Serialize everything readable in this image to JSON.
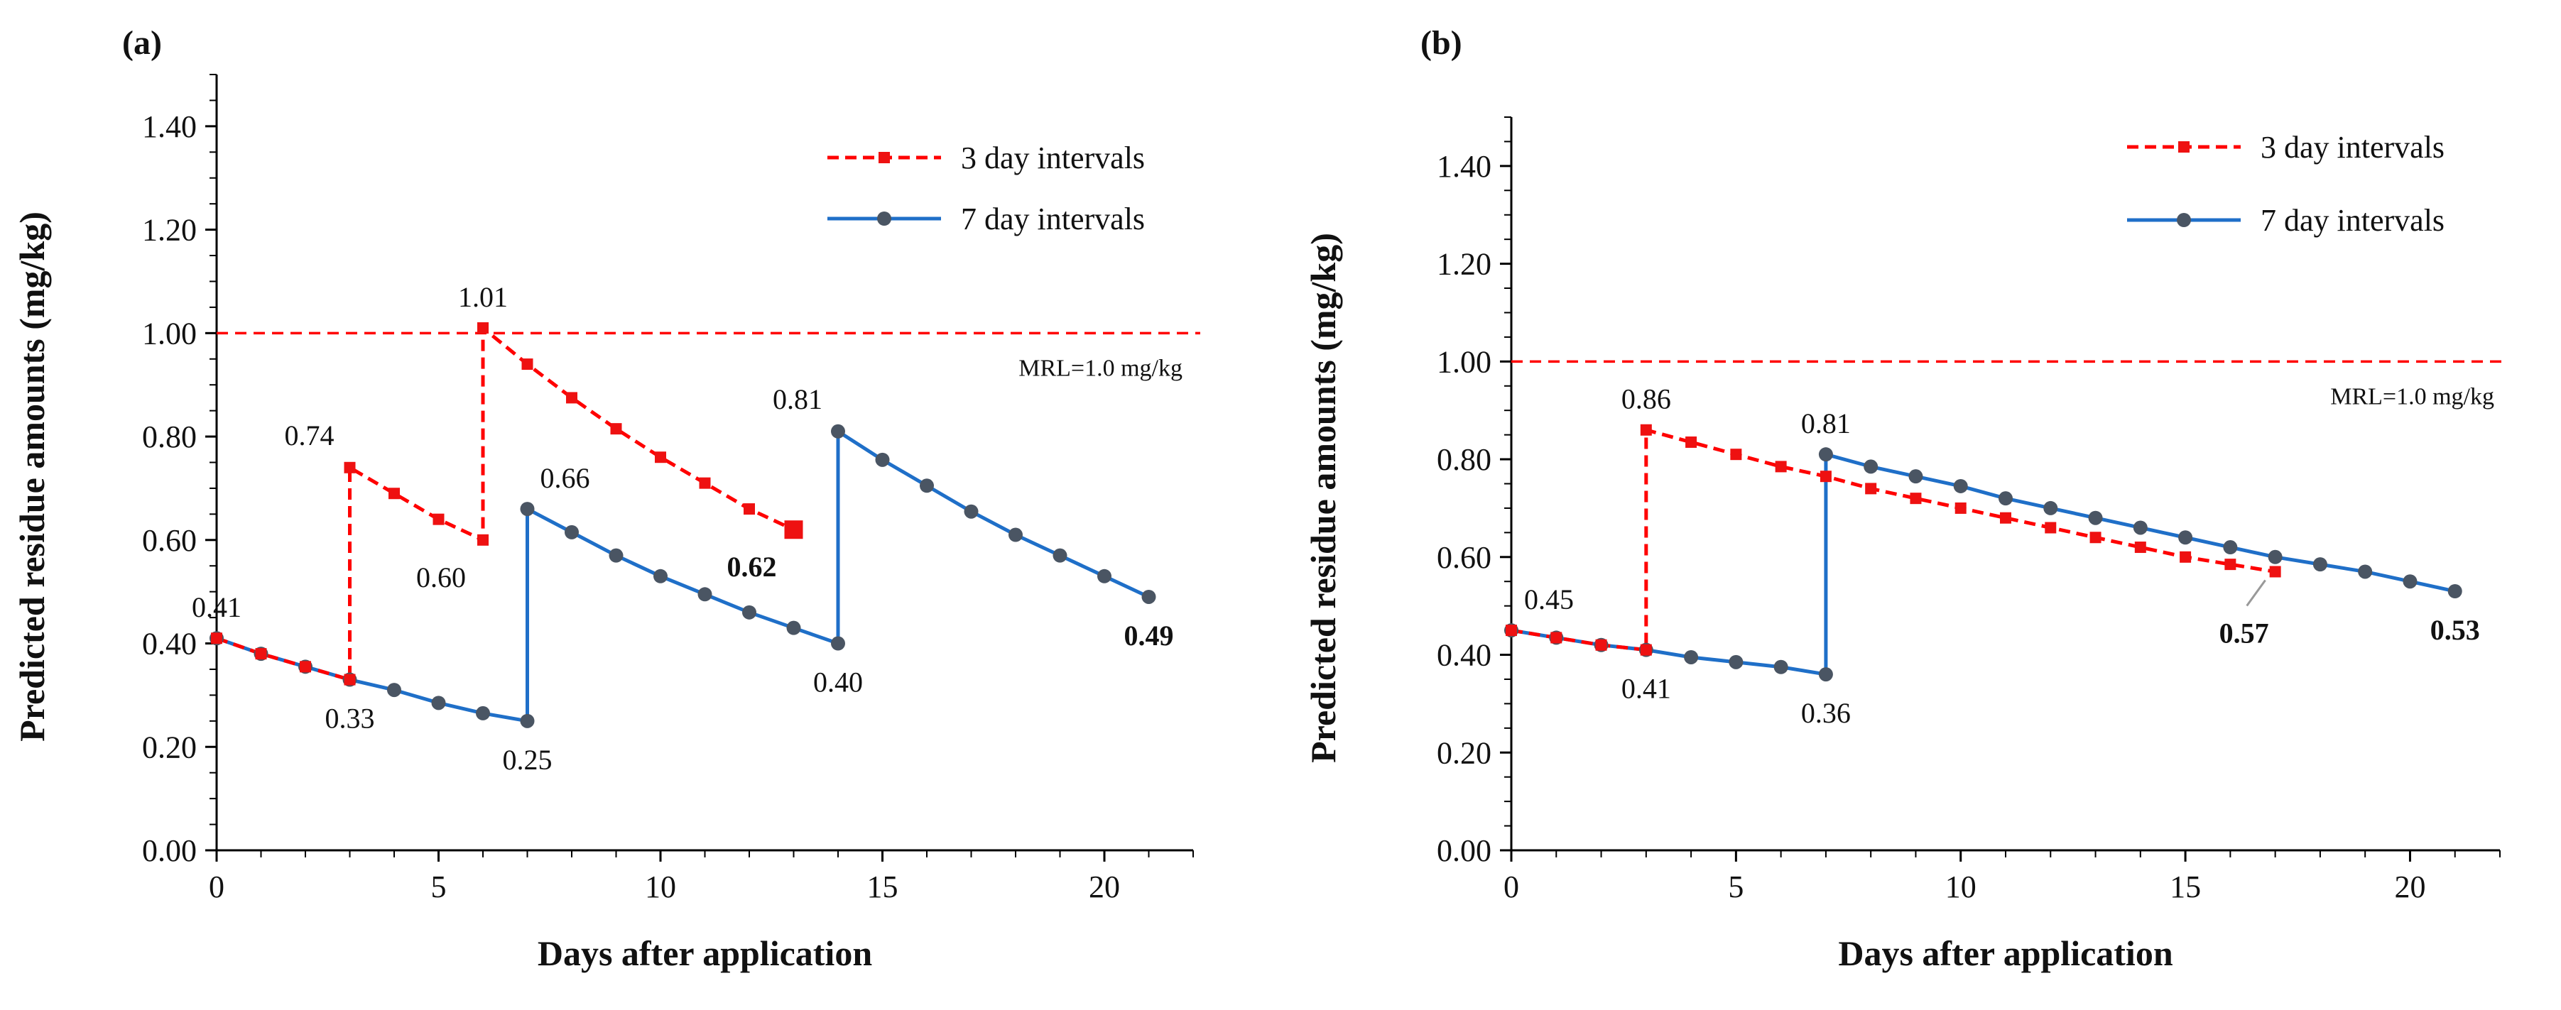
{
  "chart_data": [
    {
      "panel": "(a)",
      "type": "line",
      "xlabel": "Days after application",
      "ylabel": "Predicted residue amounts (mg/kg)",
      "xlim": [
        0,
        22
      ],
      "ylim": [
        0,
        1.5
      ],
      "xticks": [
        "0",
        "5",
        "10",
        "15",
        "20"
      ],
      "xtick_values": [
        0,
        5,
        10,
        15,
        20
      ],
      "yticks": [
        "0.00",
        "0.20",
        "0.40",
        "0.60",
        "0.80",
        "1.00",
        "1.20",
        "1.40"
      ],
      "ytick_values": [
        0,
        0.2,
        0.4,
        0.6,
        0.8,
        1.0,
        1.2,
        1.4
      ],
      "mrl": {
        "value": 1.0,
        "label": "MRL=1.0 mg/kg"
      },
      "legend": {
        "position": "top-right"
      },
      "series": [
        {
          "name": "3 day intervals",
          "style": "dashed",
          "marker": "square",
          "color": "#ff0000",
          "x": [
            0,
            1,
            2,
            3,
            3,
            4,
            5,
            6,
            6,
            7,
            8,
            9,
            10,
            11,
            12,
            13
          ],
          "y": [
            0.41,
            0.38,
            0.355,
            0.33,
            0.74,
            0.69,
            0.64,
            0.6,
            1.01,
            0.94,
            0.875,
            0.815,
            0.76,
            0.71,
            0.66,
            0.62
          ]
        },
        {
          "name": "7 day intervals",
          "style": "solid",
          "marker": "circle",
          "color": "#1f6fc8",
          "x": [
            0,
            1,
            2,
            3,
            4,
            5,
            6,
            7,
            7,
            8,
            9,
            10,
            11,
            12,
            13,
            14,
            14,
            15,
            16,
            17,
            18,
            19,
            20,
            21
          ],
          "y": [
            0.41,
            0.38,
            0.355,
            0.33,
            0.31,
            0.285,
            0.265,
            0.25,
            0.66,
            0.615,
            0.57,
            0.53,
            0.495,
            0.46,
            0.43,
            0.4,
            0.81,
            0.755,
            0.705,
            0.655,
            0.61,
            0.57,
            0.53,
            0.49
          ]
        }
      ],
      "annotations": [
        {
          "text": "0.41",
          "x": 0,
          "y": 0.41,
          "pos": "above",
          "bold": false
        },
        {
          "text": "0.33",
          "x": 3,
          "y": 0.33,
          "pos": "below",
          "bold": false
        },
        {
          "text": "0.74",
          "x": 3,
          "y": 0.74,
          "pos": "left-above",
          "bold": false
        },
        {
          "text": "0.60",
          "x": 6,
          "y": 0.6,
          "pos": "left-below",
          "bold": false
        },
        {
          "text": "1.01",
          "x": 6,
          "y": 1.01,
          "pos": "above",
          "bold": false
        },
        {
          "text": "0.25",
          "x": 7,
          "y": 0.25,
          "pos": "below",
          "bold": false
        },
        {
          "text": "0.66",
          "x": 7,
          "y": 0.66,
          "pos": "right-above",
          "bold": false
        },
        {
          "text": "0.62",
          "x": 13,
          "y": 0.62,
          "pos": "left-below",
          "bold": true
        },
        {
          "text": "0.40",
          "x": 14,
          "y": 0.4,
          "pos": "below",
          "bold": false
        },
        {
          "text": "0.81",
          "x": 14,
          "y": 0.81,
          "pos": "left-above",
          "bold": false
        },
        {
          "text": "0.49",
          "x": 21,
          "y": 0.49,
          "pos": "below",
          "bold": true
        }
      ]
    },
    {
      "panel": "(b)",
      "type": "line",
      "xlabel": "Days after application",
      "ylabel": "Predicted residue amounts (mg/kg)",
      "xlim": [
        0,
        22
      ],
      "ylim": [
        0,
        1.5
      ],
      "xticks": [
        "0",
        "5",
        "10",
        "15",
        "20"
      ],
      "xtick_values": [
        0,
        5,
        10,
        15,
        20
      ],
      "yticks": [
        "0.00",
        "0.20",
        "0.40",
        "0.60",
        "0.80",
        "1.00",
        "1.20",
        "1.40"
      ],
      "ytick_values": [
        0,
        0.2,
        0.4,
        0.6,
        0.8,
        1.0,
        1.2,
        1.4
      ],
      "mrl": {
        "value": 1.0,
        "label": "MRL=1.0 mg/kg"
      },
      "legend": {
        "position": "top-right"
      },
      "series": [
        {
          "name": "3 day intervals",
          "style": "dashed",
          "marker": "square",
          "color": "#ff0000",
          "x": [
            0,
            1,
            2,
            3,
            3,
            4,
            5,
            6,
            7,
            8,
            9,
            10,
            11,
            12,
            13,
            14,
            15,
            16,
            17
          ],
          "y": [
            0.45,
            0.435,
            0.42,
            0.41,
            0.86,
            0.835,
            0.81,
            0.785,
            0.765,
            0.74,
            0.72,
            0.7,
            0.68,
            0.66,
            0.64,
            0.62,
            0.6,
            0.585,
            0.57
          ]
        },
        {
          "name": "7 day intervals",
          "style": "solid",
          "marker": "circle",
          "color": "#1f6fc8",
          "x": [
            0,
            1,
            2,
            3,
            4,
            5,
            6,
            7,
            7,
            8,
            9,
            10,
            11,
            12,
            13,
            14,
            15,
            16,
            17,
            18,
            19,
            20,
            21
          ],
          "y": [
            0.45,
            0.435,
            0.42,
            0.41,
            0.395,
            0.385,
            0.375,
            0.36,
            0.81,
            0.785,
            0.765,
            0.745,
            0.72,
            0.7,
            0.68,
            0.66,
            0.64,
            0.62,
            0.6,
            0.585,
            0.57,
            0.55,
            0.53
          ]
        }
      ],
      "annotations": [
        {
          "text": "0.45",
          "x": 0,
          "y": 0.45,
          "pos": "right-above",
          "bold": false
        },
        {
          "text": "0.41",
          "x": 3,
          "y": 0.41,
          "pos": "below",
          "bold": false
        },
        {
          "text": "0.86",
          "x": 3,
          "y": 0.86,
          "pos": "above",
          "bold": false
        },
        {
          "text": "0.36",
          "x": 7,
          "y": 0.36,
          "pos": "below",
          "bold": false
        },
        {
          "text": "0.81",
          "x": 7,
          "y": 0.81,
          "pos": "above",
          "bold": false
        },
        {
          "text": "0.57",
          "x": 17,
          "y": 0.57,
          "pos": "leader-below",
          "bold": true
        },
        {
          "text": "0.53",
          "x": 21,
          "y": 0.53,
          "pos": "below",
          "bold": true
        }
      ]
    }
  ]
}
